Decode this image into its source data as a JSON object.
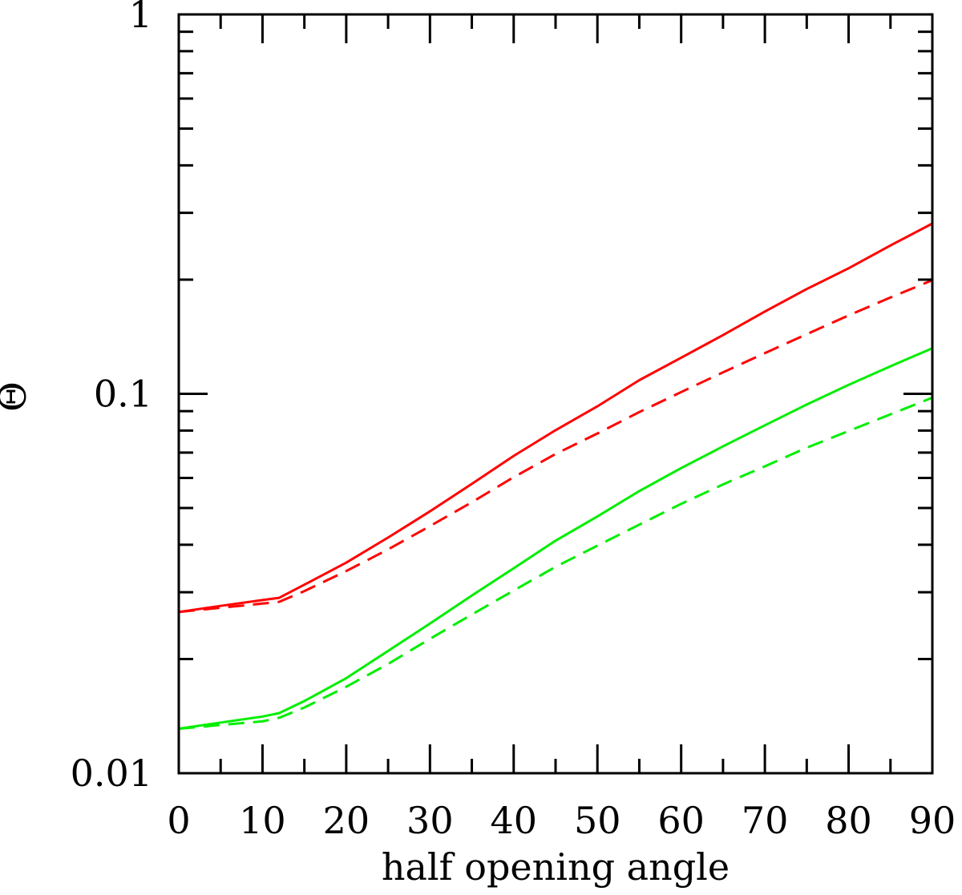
{
  "chart_data": {
    "type": "line",
    "title": "",
    "xlabel": "half opening angle",
    "ylabel": "Θ",
    "xlim": [
      0,
      90
    ],
    "ylim": [
      0.01,
      1
    ],
    "yscale": "log",
    "grid": false,
    "x_ticks": [
      0,
      10,
      20,
      30,
      40,
      50,
      60,
      70,
      80,
      90
    ],
    "x_tick_labels": [
      "0",
      "10",
      "20",
      "30",
      "40",
      "50",
      "60",
      "70",
      "80",
      "90"
    ],
    "y_ticks": [
      0.01,
      0.1,
      1
    ],
    "y_tick_labels": [
      "0.01",
      "0.1",
      "1"
    ],
    "series": [
      {
        "color": "#ff0000",
        "style": "solid",
        "x": [
          0,
          5,
          10,
          12,
          15,
          20,
          25,
          30,
          35,
          40,
          45,
          50,
          55,
          60,
          65,
          70,
          75,
          80,
          85,
          90
        ],
        "values": [
          0.0266,
          0.0276,
          0.0286,
          0.029,
          0.0314,
          0.0359,
          0.0418,
          0.049,
          0.0579,
          0.0686,
          0.0802,
          0.0927,
          0.1086,
          0.1245,
          0.1428,
          0.1648,
          0.1889,
          0.2143,
          0.2461,
          0.281
        ]
      },
      {
        "color": "#ff0000",
        "style": "dashed",
        "x": [
          0,
          5,
          10,
          12,
          15,
          20,
          25,
          30,
          35,
          40,
          45,
          50,
          55,
          60,
          65,
          70,
          75,
          80,
          85,
          90
        ],
        "values": [
          0.0266,
          0.0273,
          0.028,
          0.0283,
          0.0302,
          0.0341,
          0.0389,
          0.0448,
          0.0518,
          0.0603,
          0.0694,
          0.0786,
          0.0895,
          0.1011,
          0.1139,
          0.128,
          0.1436,
          0.161,
          0.1794,
          0.1993
        ]
      },
      {
        "color": "#00ee00",
        "style": "solid",
        "x": [
          0,
          5,
          10,
          12,
          15,
          20,
          25,
          30,
          35,
          40,
          45,
          50,
          55,
          60,
          65,
          70,
          75,
          80,
          85,
          90
        ],
        "values": [
          0.0131,
          0.0136,
          0.0141,
          0.0144,
          0.0155,
          0.0178,
          0.021,
          0.0248,
          0.0294,
          0.0347,
          0.041,
          0.0475,
          0.0554,
          0.0637,
          0.0727,
          0.0826,
          0.0937,
          0.1056,
          0.1182,
          0.1319
        ]
      },
      {
        "color": "#00ee00",
        "style": "dashed",
        "x": [
          0,
          5,
          10,
          12,
          15,
          20,
          25,
          30,
          35,
          40,
          45,
          50,
          55,
          60,
          65,
          70,
          75,
          80,
          85,
          90
        ],
        "values": [
          0.0131,
          0.0134,
          0.0137,
          0.014,
          0.0149,
          0.0169,
          0.0194,
          0.0226,
          0.0262,
          0.0303,
          0.035,
          0.0398,
          0.0452,
          0.0513,
          0.0577,
          0.0644,
          0.0721,
          0.0798,
          0.0883,
          0.0977
        ]
      }
    ]
  }
}
